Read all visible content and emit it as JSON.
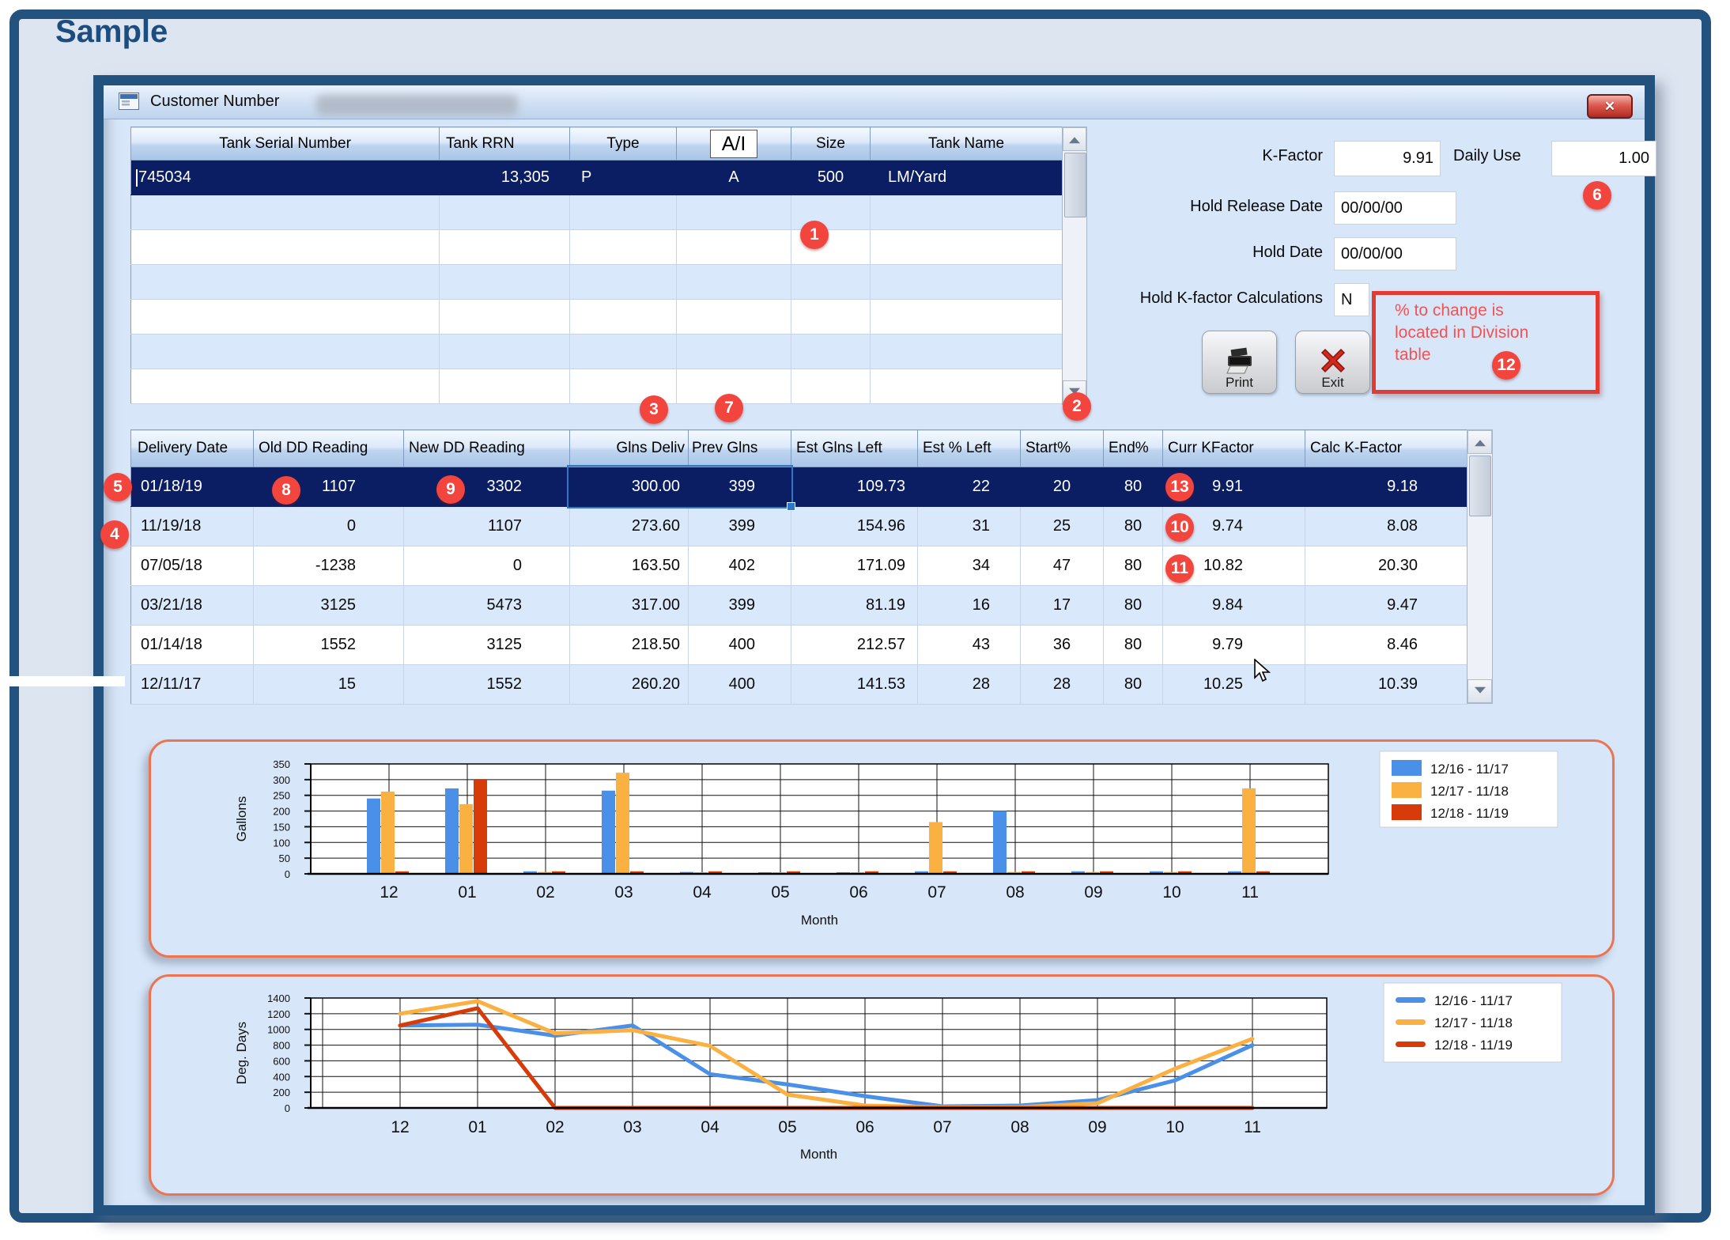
{
  "page": {
    "label": "Sample"
  },
  "window": {
    "title": "Customer Number",
    "close_glyph": "✕"
  },
  "tank_table": {
    "headers": [
      "Tank Serial Number",
      "Tank RRN",
      "Type",
      "A/I",
      "Size",
      "Tank Name"
    ],
    "row": [
      "745034",
      "13,305",
      "P",
      "A",
      "500",
      "LM/Yard"
    ]
  },
  "fields": {
    "k_factor_label": "K-Factor",
    "k_factor_value": "9.91",
    "daily_use_label": "Daily Use",
    "daily_use_value": "1.00",
    "hold_release_label": "Hold Release Date",
    "hold_release_value": "00/00/00",
    "hold_date_label": "Hold Date",
    "hold_date_value": "00/00/00",
    "hold_kfactor_label": "Hold K-factor Calculations",
    "hold_kfactor_value": "N"
  },
  "buttons": {
    "print": "Print",
    "exit": "Exit"
  },
  "note": {
    "line1": "% to change is",
    "line2": "located in Division",
    "line3": "table"
  },
  "delivery_table": {
    "headers": [
      "Delivery Date",
      "Old DD Reading",
      "New DD Reading",
      "Glns Deliv",
      "Prev Glns",
      "Est Glns Left",
      "Est % Left",
      "Start%",
      "End%",
      "Curr KFactor",
      "Calc K-Factor"
    ],
    "rows": [
      [
        "01/18/19",
        "1107",
        "3302",
        "300.00",
        "399",
        "109.73",
        "22",
        "20",
        "80",
        "9.91",
        "9.18"
      ],
      [
        "11/19/18",
        "0",
        "1107",
        "273.60",
        "399",
        "154.96",
        "31",
        "25",
        "80",
        "9.74",
        "8.08"
      ],
      [
        "07/05/18",
        "-1238",
        "0",
        "163.50",
        "402",
        "171.09",
        "34",
        "47",
        "80",
        "10.82",
        "20.30"
      ],
      [
        "03/21/18",
        "3125",
        "5473",
        "317.00",
        "399",
        "81.19",
        "16",
        "17",
        "80",
        "9.84",
        "9.47"
      ],
      [
        "01/14/18",
        "1552",
        "3125",
        "218.50",
        "400",
        "212.57",
        "43",
        "36",
        "80",
        "9.79",
        "8.46"
      ],
      [
        "12/11/17",
        "15",
        "1552",
        "260.20",
        "400",
        "141.53",
        "28",
        "28",
        "80",
        "10.25",
        "10.39"
      ]
    ]
  },
  "badges": [
    "1",
    "2",
    "3",
    "4",
    "5",
    "6",
    "7",
    "8",
    "9",
    "10",
    "11",
    "12",
    "13"
  ],
  "chart_data": [
    {
      "type": "bar",
      "title": "",
      "xlabel": "Month",
      "ylabel": "Gallons",
      "ylim": [
        0,
        350
      ],
      "ytick_step": 50,
      "grid": true,
      "legend_position": "top-right",
      "categories": [
        "12",
        "01",
        "02",
        "03",
        "04",
        "05",
        "06",
        "07",
        "08",
        "09",
        "10",
        "11"
      ],
      "series": [
        {
          "name": "12/16 - 11/17",
          "color": "#4a90e8",
          "values": [
            240,
            272,
            8,
            265,
            6,
            5,
            5,
            8,
            200,
            8,
            8,
            8
          ]
        },
        {
          "name": "12/17 - 11/18",
          "color": "#fbb042",
          "values": [
            262,
            222,
            6,
            322,
            5,
            5,
            5,
            165,
            6,
            6,
            6,
            272
          ]
        },
        {
          "name": "12/18 - 11/19",
          "color": "#d63b09",
          "values": [
            8,
            302,
            8,
            8,
            8,
            8,
            8,
            8,
            8,
            8,
            8,
            8
          ]
        }
      ]
    },
    {
      "type": "line",
      "title": "",
      "xlabel": "Month",
      "ylabel": "Deg. Days",
      "ylim": [
        0,
        1400
      ],
      "ytick_step": 200,
      "grid": true,
      "legend_position": "top-right",
      "categories": [
        "12",
        "01",
        "02",
        "03",
        "04",
        "05",
        "06",
        "07",
        "08",
        "09",
        "10",
        "11"
      ],
      "series": [
        {
          "name": "12/16 - 11/17",
          "color": "#4a90e8",
          "values": [
            1050,
            1060,
            920,
            1050,
            430,
            300,
            150,
            20,
            30,
            100,
            350,
            800
          ]
        },
        {
          "name": "12/17 - 11/18",
          "color": "#fbb042",
          "values": [
            1200,
            1360,
            950,
            990,
            790,
            170,
            30,
            10,
            10,
            60,
            500,
            880
          ]
        },
        {
          "name": "12/18 - 11/19",
          "color": "#d63b09",
          "values": [
            1050,
            1270,
            0,
            0,
            0,
            0,
            0,
            0,
            0,
            0,
            0,
            0
          ]
        }
      ]
    }
  ]
}
